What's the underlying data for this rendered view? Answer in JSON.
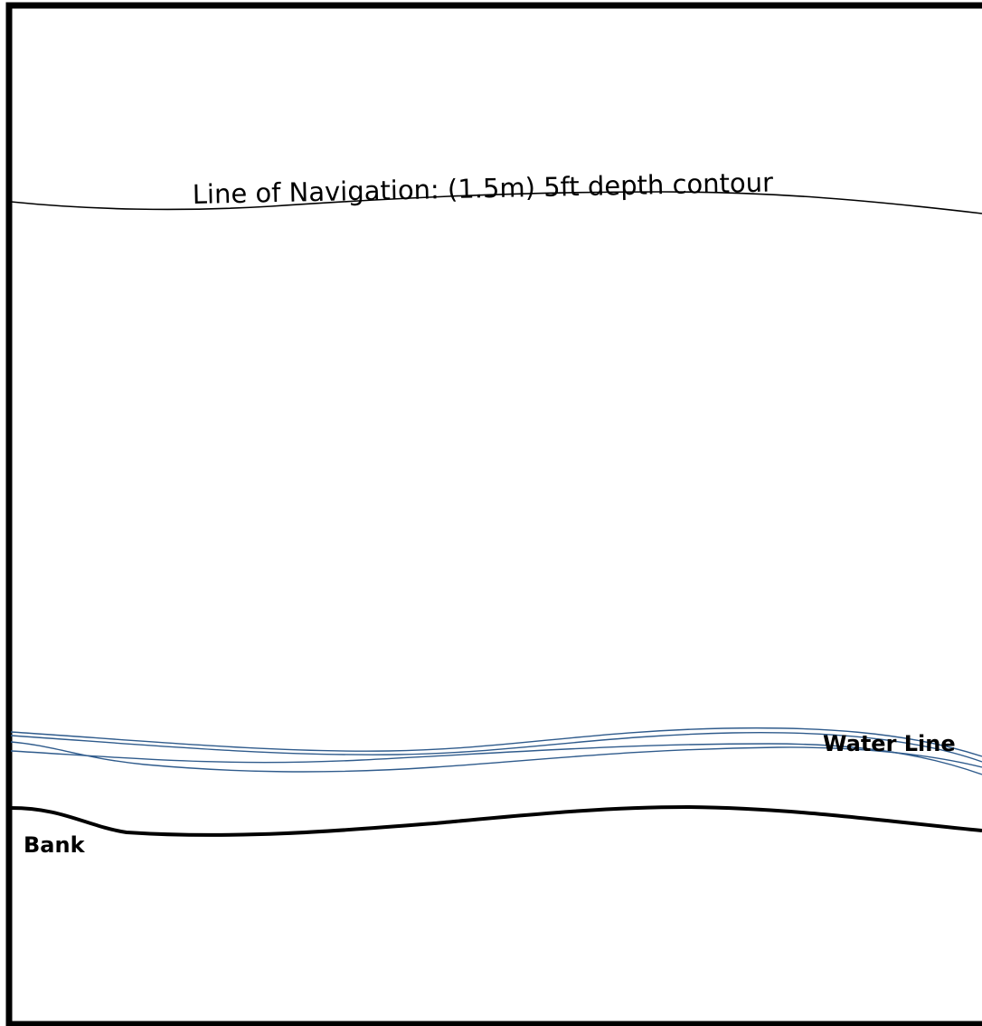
{
  "diagram": {
    "labels": {
      "navigation": "Line of Navigation: (1.5m) 5ft depth contour",
      "water_line": "Water Line",
      "bank": "Bank"
    },
    "colors": {
      "frame": "#000000",
      "navigation_line": "#000000",
      "water_lines": "#2f5b8c",
      "bank_line": "#000000",
      "background": "#ffffff"
    }
  }
}
